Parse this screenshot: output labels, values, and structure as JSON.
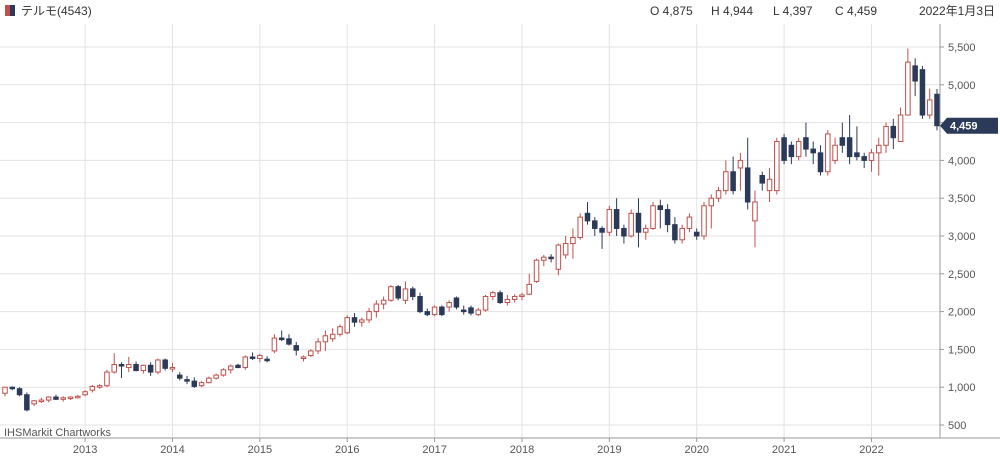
{
  "header": {
    "symbol_label": "テルモ(4543)",
    "ohlc": [
      {
        "key": "O",
        "value": "4,875"
      },
      {
        "key": "H",
        "value": "4,944"
      },
      {
        "key": "L",
        "value": "4,397"
      },
      {
        "key": "C",
        "value": "4,459"
      }
    ],
    "date": "2022年1月3日"
  },
  "watermark": "IHSMarkit Chartworks",
  "last_price_tag": "4,459",
  "colors": {
    "up": "#c0504d",
    "down": "#2b3a59",
    "grid": "#e3e3e3",
    "tag_bg": "#2b3a59",
    "symbol_swatch": [
      "#c0504d",
      "#2b3a59"
    ]
  },
  "chart_data": {
    "type": "candlestick",
    "interval": "monthly",
    "y_ticks": [
      500,
      1000,
      1500,
      2000,
      2500,
      3000,
      3500,
      4000,
      4500,
      5000,
      5500
    ],
    "y_tick_labels": [
      "500",
      "1,000",
      "1,500",
      "2,000",
      "2,500",
      "3,000",
      "3,500",
      "4,000",
      "4,500",
      "5,000",
      "5,500"
    ],
    "ylim": [
      300,
      5800
    ],
    "x_tick_labels": [
      "2013",
      "2014",
      "2015",
      "2016",
      "2017",
      "2018",
      "2019",
      "2020",
      "2021",
      "2022"
    ],
    "grid": true,
    "start": "2012-02",
    "candles": [
      [
        920,
        1000,
        880,
        1000
      ],
      [
        1000,
        1010,
        960,
        980
      ],
      [
        980,
        1000,
        880,
        900
      ],
      [
        900,
        930,
        680,
        700
      ],
      [
        780,
        830,
        750,
        820
      ],
      [
        820,
        860,
        790,
        830
      ],
      [
        830,
        880,
        800,
        870
      ],
      [
        870,
        900,
        830,
        840
      ],
      [
        840,
        880,
        810,
        860
      ],
      [
        860,
        880,
        830,
        870
      ],
      [
        870,
        900,
        850,
        880
      ],
      [
        900,
        960,
        880,
        940
      ],
      [
        960,
        1030,
        930,
        1010
      ],
      [
        1000,
        1040,
        980,
        1020
      ],
      [
        1020,
        1230,
        1000,
        1200
      ],
      [
        1200,
        1450,
        1180,
        1300
      ],
      [
        1300,
        1330,
        1120,
        1290
      ],
      [
        1260,
        1400,
        1200,
        1300
      ],
      [
        1300,
        1340,
        1210,
        1220
      ],
      [
        1220,
        1300,
        1180,
        1290
      ],
      [
        1290,
        1330,
        1150,
        1200
      ],
      [
        1200,
        1380,
        1170,
        1360
      ],
      [
        1360,
        1380,
        1220,
        1250
      ],
      [
        1250,
        1320,
        1200,
        1260
      ],
      [
        1160,
        1200,
        1090,
        1120
      ],
      [
        1100,
        1150,
        1040,
        1080
      ],
      [
        1080,
        1130,
        990,
        1010
      ],
      [
        1020,
        1080,
        1000,
        1060
      ],
      [
        1060,
        1140,
        1050,
        1120
      ],
      [
        1120,
        1180,
        1100,
        1160
      ],
      [
        1160,
        1250,
        1140,
        1230
      ],
      [
        1230,
        1300,
        1180,
        1280
      ],
      [
        1290,
        1310,
        1250,
        1260
      ],
      [
        1260,
        1420,
        1230,
        1400
      ],
      [
        1400,
        1460,
        1360,
        1380
      ],
      [
        1380,
        1440,
        1330,
        1420
      ],
      [
        1370,
        1410,
        1330,
        1360
      ],
      [
        1480,
        1700,
        1450,
        1650
      ],
      [
        1650,
        1750,
        1610,
        1640
      ],
      [
        1640,
        1700,
        1550,
        1570
      ],
      [
        1550,
        1600,
        1420,
        1490
      ],
      [
        1380,
        1420,
        1340,
        1400
      ],
      [
        1420,
        1500,
        1400,
        1480
      ],
      [
        1480,
        1650,
        1440,
        1600
      ],
      [
        1600,
        1750,
        1480,
        1680
      ],
      [
        1640,
        1780,
        1600,
        1700
      ],
      [
        1700,
        1830,
        1670,
        1800
      ],
      [
        1720,
        1950,
        1700,
        1920
      ],
      [
        1920,
        1980,
        1800,
        1860
      ],
      [
        1860,
        1920,
        1800,
        1890
      ],
      [
        1890,
        2050,
        1850,
        2000
      ],
      [
        2000,
        2150,
        1920,
        2100
      ],
      [
        2100,
        2200,
        2030,
        2150
      ],
      [
        2150,
        2350,
        2130,
        2330
      ],
      [
        2330,
        2350,
        2150,
        2180
      ],
      [
        2150,
        2400,
        2100,
        2300
      ],
      [
        2300,
        2330,
        2150,
        2200
      ],
      [
        2200,
        2250,
        1980,
        2000
      ],
      [
        2000,
        2040,
        1940,
        1960
      ],
      [
        1960,
        2080,
        1940,
        2060
      ],
      [
        2060,
        2080,
        1940,
        1960
      ],
      [
        2060,
        2150,
        2000,
        2120
      ],
      [
        2180,
        2200,
        2030,
        2060
      ],
      [
        2020,
        2080,
        1960,
        2000
      ],
      [
        2050,
        2080,
        1950,
        1980
      ],
      [
        1960,
        2050,
        1940,
        2020
      ],
      [
        2020,
        2220,
        2000,
        2200
      ],
      [
        2200,
        2270,
        2150,
        2250
      ],
      [
        2250,
        2280,
        2100,
        2120
      ],
      [
        2120,
        2220,
        2080,
        2160
      ],
      [
        2160,
        2230,
        2120,
        2200
      ],
      [
        2200,
        2250,
        2150,
        2220
      ],
      [
        2230,
        2500,
        2220,
        2360
      ],
      [
        2400,
        2700,
        2380,
        2680
      ],
      [
        2680,
        2750,
        2600,
        2720
      ],
      [
        2720,
        2760,
        2650,
        2700
      ],
      [
        2560,
        2900,
        2480,
        2880
      ],
      [
        2750,
        3000,
        2700,
        2900
      ],
      [
        2900,
        3100,
        2700,
        2980
      ],
      [
        2980,
        3300,
        2950,
        3250
      ],
      [
        3300,
        3450,
        3150,
        3200
      ],
      [
        3200,
        3250,
        3000,
        3100
      ],
      [
        3100,
        3130,
        2830,
        3050
      ],
      [
        3050,
        3400,
        3000,
        3350
      ],
      [
        3350,
        3500,
        3000,
        3100
      ],
      [
        3100,
        3150,
        2900,
        3000
      ],
      [
        3000,
        3350,
        2980,
        3300
      ],
      [
        3300,
        3500,
        2850,
        3050
      ],
      [
        3050,
        3150,
        2950,
        3100
      ],
      [
        3100,
        3450,
        3080,
        3400
      ],
      [
        3400,
        3480,
        3100,
        3350
      ],
      [
        3350,
        3420,
        3050,
        3150
      ],
      [
        3150,
        3250,
        2900,
        2950
      ],
      [
        2950,
        3150,
        2900,
        3100
      ],
      [
        3100,
        3300,
        3050,
        3250
      ],
      [
        3050,
        3100,
        2950,
        3000
      ],
      [
        3000,
        3450,
        2950,
        3400
      ],
      [
        3400,
        3550,
        3100,
        3500
      ],
      [
        3500,
        3650,
        3450,
        3600
      ],
      [
        3600,
        4000,
        3550,
        3850
      ],
      [
        3850,
        4050,
        3550,
        3600
      ],
      [
        3900,
        4100,
        3600,
        4000
      ],
      [
        3900,
        4300,
        3350,
        3450
      ],
      [
        3200,
        3600,
        2850,
        3450
      ],
      [
        3800,
        3850,
        3600,
        3700
      ],
      [
        3600,
        3900,
        3450,
        3750
      ],
      [
        3600,
        4300,
        3550,
        4250
      ],
      [
        4300,
        4350,
        3950,
        4000
      ],
      [
        4200,
        4250,
        3950,
        4050
      ],
      [
        4050,
        4300,
        4000,
        4250
      ],
      [
        4300,
        4500,
        4050,
        4150
      ],
      [
        4150,
        4250,
        3950,
        4100
      ],
      [
        4100,
        4200,
        3800,
        3850
      ],
      [
        3850,
        4400,
        3800,
        4350
      ],
      [
        4000,
        4300,
        3950,
        4200
      ],
      [
        4300,
        4500,
        4100,
        4200
      ],
      [
        4300,
        4600,
        3950,
        4050
      ],
      [
        4100,
        4450,
        4000,
        4050
      ],
      [
        4050,
        4100,
        3900,
        4000
      ],
      [
        4000,
        4150,
        3850,
        4100
      ],
      [
        4100,
        4300,
        3800,
        4200
      ],
      [
        4200,
        4500,
        4100,
        4450
      ],
      [
        4450,
        4550,
        4150,
        4300
      ],
      [
        4250,
        4700,
        4250,
        4600
      ],
      [
        4600,
        5480,
        4600,
        5300
      ],
      [
        5250,
        5350,
        4850,
        5050
      ],
      [
        5200,
        5250,
        4550,
        4600
      ],
      [
        4600,
        4950,
        4550,
        4800
      ],
      [
        4875,
        4944,
        4397,
        4459
      ]
    ]
  }
}
